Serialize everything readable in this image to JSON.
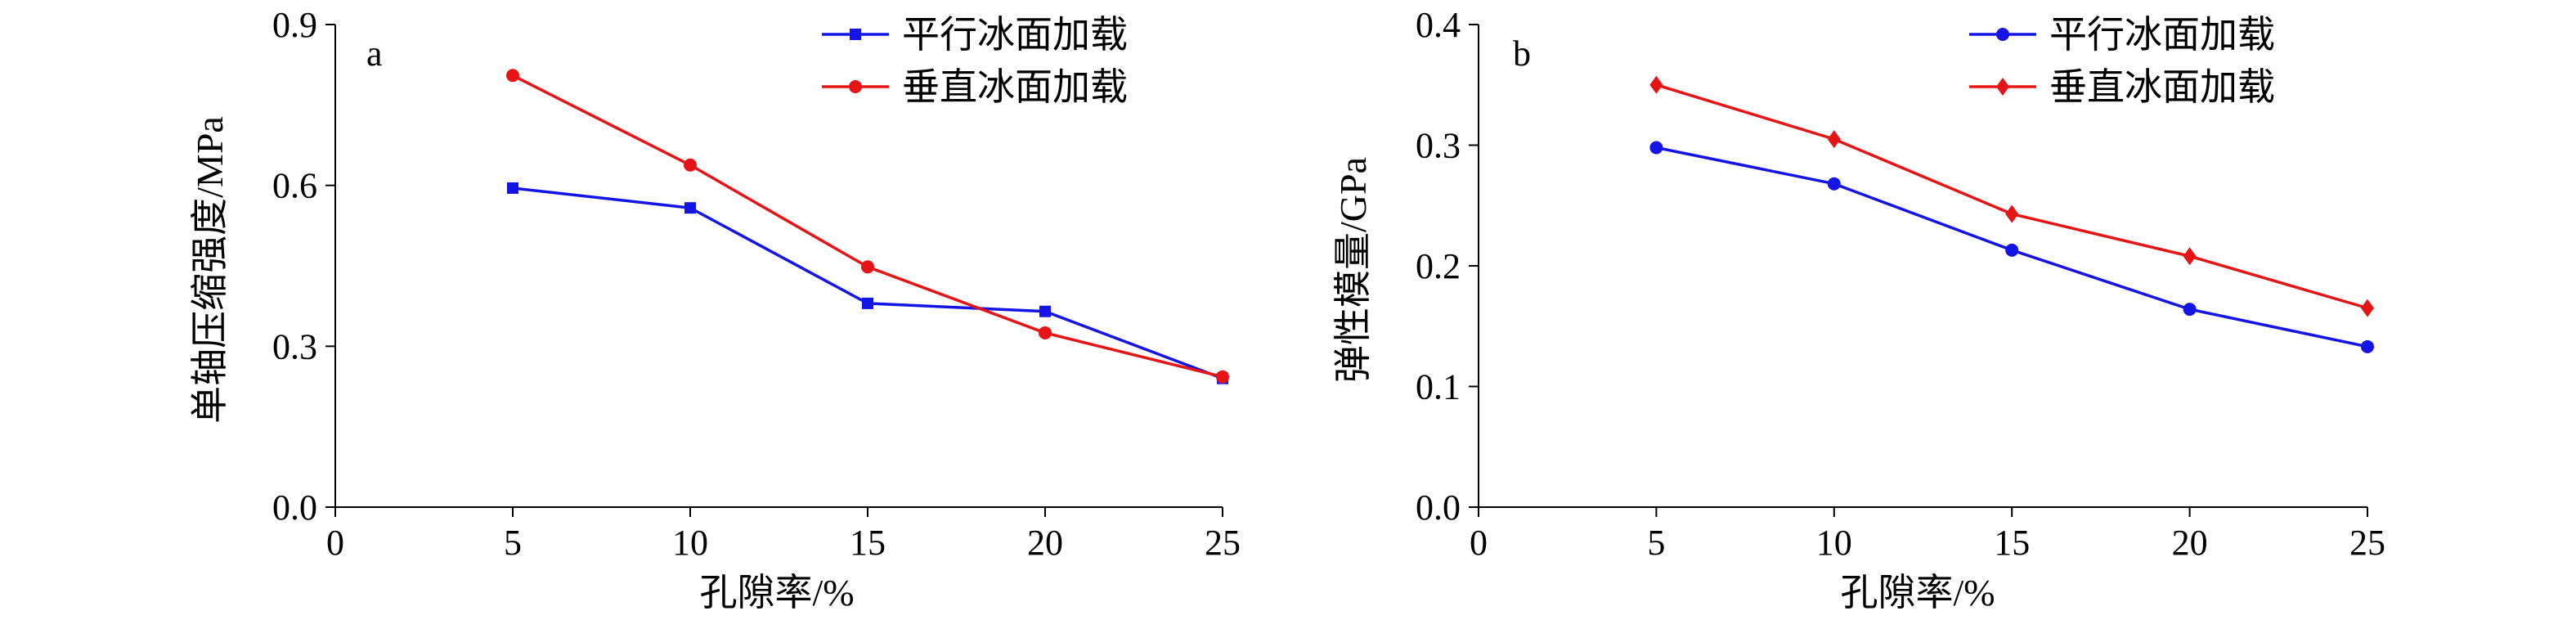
{
  "chart_data": [
    {
      "type": "line",
      "panel_label": "a",
      "xlabel": "孔隙率/%",
      "ylabel": "单轴压缩强度/MPa",
      "xlim": [
        0,
        25
      ],
      "ylim": [
        0,
        0.9
      ],
      "xticks": [
        "0",
        "5",
        "10",
        "15",
        "20",
        "25"
      ],
      "yticks": [
        "0.0",
        "0.3",
        "0.6",
        "0.9"
      ],
      "grid": false,
      "legend_position": "top-right",
      "x": [
        5,
        10,
        15,
        20,
        25
      ],
      "series": [
        {
          "name": "平行冰面加载",
          "color": "#1414e6",
          "marker": "square",
          "values": [
            0.595,
            0.558,
            0.38,
            0.365,
            0.24
          ]
        },
        {
          "name": "垂直冰面加载",
          "color": "#e61414",
          "marker": "circle",
          "values": [
            0.805,
            0.638,
            0.448,
            0.325,
            0.243
          ]
        }
      ]
    },
    {
      "type": "line",
      "panel_label": "b",
      "xlabel": "孔隙率/%",
      "ylabel": "弹性模量/GPa",
      "xlim": [
        0,
        25
      ],
      "ylim": [
        0,
        0.4
      ],
      "xticks": [
        "0",
        "5",
        "10",
        "15",
        "20",
        "25"
      ],
      "yticks": [
        "0.0",
        "0.1",
        "0.2",
        "0.3",
        "0.4"
      ],
      "grid": false,
      "legend_position": "top-right",
      "x": [
        5,
        10,
        15,
        20,
        25
      ],
      "series": [
        {
          "name": "平行冰面加载",
          "color": "#1414e6",
          "marker": "circle",
          "values": [
            0.298,
            0.268,
            0.213,
            0.164,
            0.133
          ]
        },
        {
          "name": "垂直冰面加载",
          "color": "#e61414",
          "marker": "diamond",
          "values": [
            0.35,
            0.305,
            0.243,
            0.208,
            0.165
          ]
        }
      ]
    }
  ]
}
